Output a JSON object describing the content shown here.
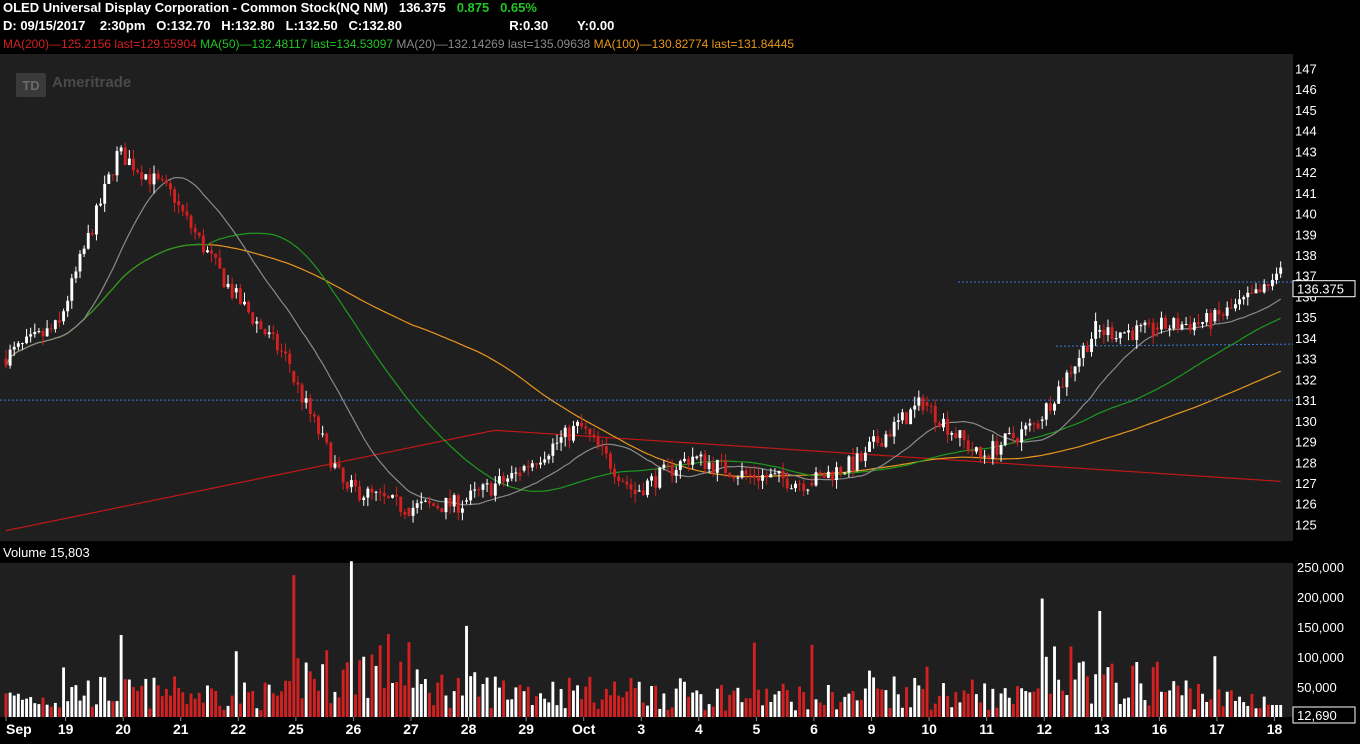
{
  "header": {
    "title": "OLED Universal Display Corporation - Common Stock(NQ NM)",
    "last": "136.375",
    "change": "0.875",
    "change_pct": "0.65%",
    "date": "D: 09/15/2017",
    "time": "2:30pm",
    "open_label": "O:",
    "open": "132.70",
    "high_label": "H:",
    "high": "132.80",
    "low_label": "L:",
    "low": "132.50",
    "close_label": "C:",
    "close": "132.80",
    "r_label": "R:",
    "r": "0.30",
    "y_label": "Y:",
    "y": "0.00"
  },
  "indicators": [
    {
      "text": "MA(200)—125.2156 last=129.55904",
      "color": "#d42020"
    },
    {
      "text": "MA(50)—132.48117 last=134.53097",
      "color": "#22c522"
    },
    {
      "text": "MA(20)—132.14269 last=135.09638",
      "color": "#8a8a8a"
    },
    {
      "text": "MA(100)—130.82774 last=131.84445",
      "color": "#e8961e"
    }
  ],
  "watermark": "Ameritrade",
  "watermark_logo": "TD",
  "price_badge": "136.375",
  "volume_label": "Volume 15,803",
  "volume_badge": "12,690",
  "chart_data": {
    "type": "candlestick",
    "price_ticks": [
      125,
      126,
      127,
      128,
      129,
      130,
      131,
      132,
      133,
      134,
      135,
      136,
      137,
      138,
      139,
      140,
      141,
      142,
      143,
      144,
      145,
      146,
      147
    ],
    "price_range": [
      124.2,
      147.7
    ],
    "volume_ticks": [
      50000,
      100000,
      150000,
      200000,
      250000
    ],
    "volume_tick_labels": [
      "50,000",
      "100,000",
      "150,000",
      "200,000",
      "250,000"
    ],
    "volume_range": [
      0,
      250000
    ],
    "x_labels": [
      "Sep",
      "19",
      "20",
      "21",
      "22",
      "25",
      "26",
      "27",
      "28",
      "29",
      "Oct",
      "3",
      "4",
      "5",
      "6",
      "9",
      "10",
      "11",
      "12",
      "13",
      "16",
      "17",
      "18"
    ],
    "x_label_slot": [
      0,
      14.5,
      28.5,
      42.5,
      56.5,
      70.5,
      84.5,
      98.5,
      112.5,
      126.5,
      140.5,
      154.5,
      168.5,
      182.5,
      196.5,
      210.5,
      224.5,
      238.5,
      252.5,
      266.5,
      280.5,
      294.5,
      308.5
    ],
    "bars_per_day": 14,
    "day_closes": [
      134.6,
      142.8,
      140.8,
      136.2,
      132.8,
      126.5,
      125.8,
      126.0,
      127.5,
      129.7,
      126.5,
      128.3,
      127.3,
      127.0,
      128.2,
      130.9,
      128.2,
      129.9,
      134.4,
      134.3,
      134.8,
      136.375
    ],
    "day_opens": [
      133.0,
      134.8,
      143.0,
      140.6,
      136.2,
      132.4,
      126.8,
      125.8,
      126.1,
      127.6,
      129.9,
      126.6,
      128.2,
      127.4,
      127.0,
      128.5,
      130.9,
      128.3,
      130.0,
      134.3,
      134.5,
      134.8
    ],
    "day_volume_avg": [
      30000,
      42000,
      40000,
      38000,
      36000,
      70000,
      85000,
      48000,
      45000,
      42000,
      40000,
      38000,
      36000,
      35000,
      33000,
      45000,
      38000,
      32000,
      70000,
      55000,
      42000,
      30000
    ],
    "resistance": 136.7,
    "support_start": 133.6,
    "support_end": 133.7,
    "h_level": 131.0,
    "ma200_last": 129.55904,
    "ma100_last": 131.84445,
    "ma50_last": 134.53097,
    "ma20_last": 135.09638
  },
  "colors": {
    "background": "#000000",
    "plot_bg": "#1f1f1f",
    "up": "#ffffff",
    "down": "#d42020",
    "grid_text": "#ffffff",
    "level_line": "#3a78e0",
    "ma20": "#8a8a8a",
    "ma50": "#1f9a1f",
    "ma100": "#e8961e",
    "ma200": "#c01818"
  }
}
